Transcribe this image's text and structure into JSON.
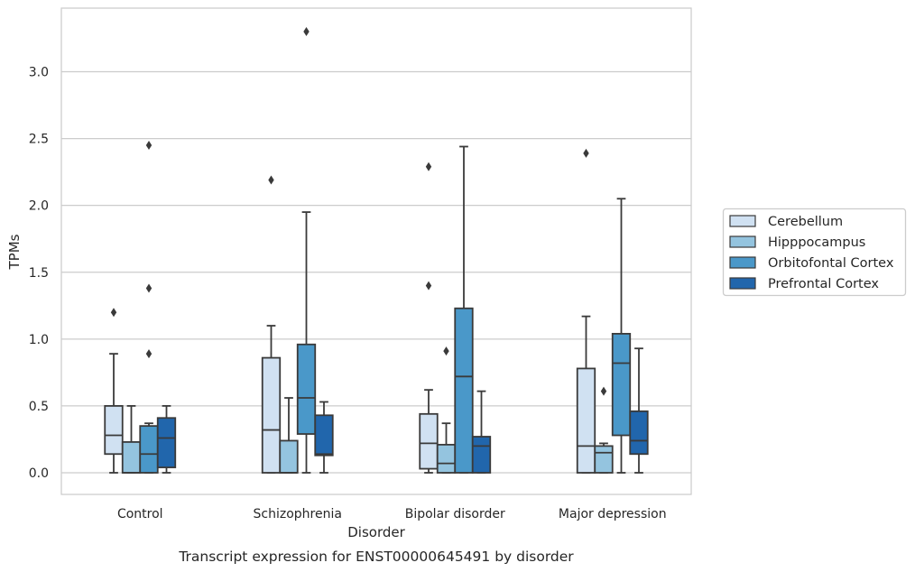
{
  "chart_data": {
    "type": "box",
    "categories": [
      "Control",
      "Schizophrenia",
      "Bipolar disorder",
      "Major depression"
    ],
    "xlabel": "Disorder",
    "ylabel": "TPMs",
    "caption": "Transcript expression for ENST00000645491 by disorder",
    "ylim": [
      -0.16,
      3.48
    ],
    "yticks": [
      "0.0",
      "0.5",
      "1.0",
      "1.5",
      "2.0",
      "2.5",
      "3.0"
    ],
    "grid": true,
    "legend_position": "right",
    "series": [
      {
        "name": "Cerebellum",
        "color": "#d0e1f2",
        "boxes": [
          {
            "category": "Control",
            "whislo": 0.0,
            "q1": 0.14,
            "median": 0.28,
            "q3": 0.5,
            "whishi": 0.89,
            "fliers": [
              1.2
            ]
          },
          {
            "category": "Schizophrenia",
            "whislo": 0.0,
            "q1": 0.0,
            "median": 0.32,
            "q3": 0.86,
            "whishi": 1.1,
            "fliers": [
              2.19
            ]
          },
          {
            "category": "Bipolar disorder",
            "whislo": 0.0,
            "q1": 0.03,
            "median": 0.22,
            "q3": 0.44,
            "whishi": 0.62,
            "fliers": [
              1.4,
              2.29
            ]
          },
          {
            "category": "Major depression",
            "whislo": 0.0,
            "q1": 0.0,
            "median": 0.2,
            "q3": 0.78,
            "whishi": 1.17,
            "fliers": [
              2.39
            ]
          }
        ]
      },
      {
        "name": "Hipppocampus",
        "color": "#94c4df",
        "boxes": [
          {
            "category": "Control",
            "whislo": 0.0,
            "q1": 0.0,
            "median": 0.0,
            "q3": 0.23,
            "whishi": 0.5,
            "fliers": []
          },
          {
            "category": "Schizophrenia",
            "whislo": 0.0,
            "q1": 0.0,
            "median": 0.0,
            "q3": 0.24,
            "whishi": 0.56,
            "fliers": []
          },
          {
            "category": "Bipolar disorder",
            "whislo": 0.0,
            "q1": 0.0,
            "median": 0.07,
            "q3": 0.21,
            "whishi": 0.37,
            "fliers": [
              0.91
            ]
          },
          {
            "category": "Major depression",
            "whislo": 0.0,
            "q1": 0.0,
            "median": 0.15,
            "q3": 0.2,
            "whishi": 0.22,
            "fliers": [
              0.61
            ]
          }
        ]
      },
      {
        "name": "Orbitofontal Cortex",
        "color": "#4a98c9",
        "boxes": [
          {
            "category": "Control",
            "whislo": 0.0,
            "q1": 0.0,
            "median": 0.14,
            "q3": 0.35,
            "whishi": 0.37,
            "fliers": [
              0.89,
              1.38,
              2.45
            ]
          },
          {
            "category": "Schizophrenia",
            "whislo": 0.0,
            "q1": 0.29,
            "median": 0.56,
            "q3": 0.96,
            "whishi": 1.95,
            "fliers": [
              3.3
            ]
          },
          {
            "category": "Bipolar disorder",
            "whislo": 0.0,
            "q1": 0.0,
            "median": 0.72,
            "q3": 1.23,
            "whishi": 2.44,
            "fliers": []
          },
          {
            "category": "Major depression",
            "whislo": 0.0,
            "q1": 0.28,
            "median": 0.82,
            "q3": 1.04,
            "whishi": 2.05,
            "fliers": []
          }
        ]
      },
      {
        "name": "Prefrontal Cortex",
        "color": "#2166ac",
        "boxes": [
          {
            "category": "Control",
            "whislo": 0.0,
            "q1": 0.04,
            "median": 0.26,
            "q3": 0.41,
            "whishi": 0.5,
            "fliers": []
          },
          {
            "category": "Schizophrenia",
            "whislo": 0.0,
            "q1": 0.13,
            "median": 0.14,
            "q3": 0.43,
            "whishi": 0.53,
            "fliers": []
          },
          {
            "category": "Bipolar disorder",
            "whislo": 0.0,
            "q1": 0.0,
            "median": 0.2,
            "q3": 0.27,
            "whishi": 0.61,
            "fliers": []
          },
          {
            "category": "Major depression",
            "whislo": 0.0,
            "q1": 0.14,
            "median": 0.24,
            "q3": 0.46,
            "whishi": 0.93,
            "fliers": []
          }
        ]
      }
    ]
  }
}
